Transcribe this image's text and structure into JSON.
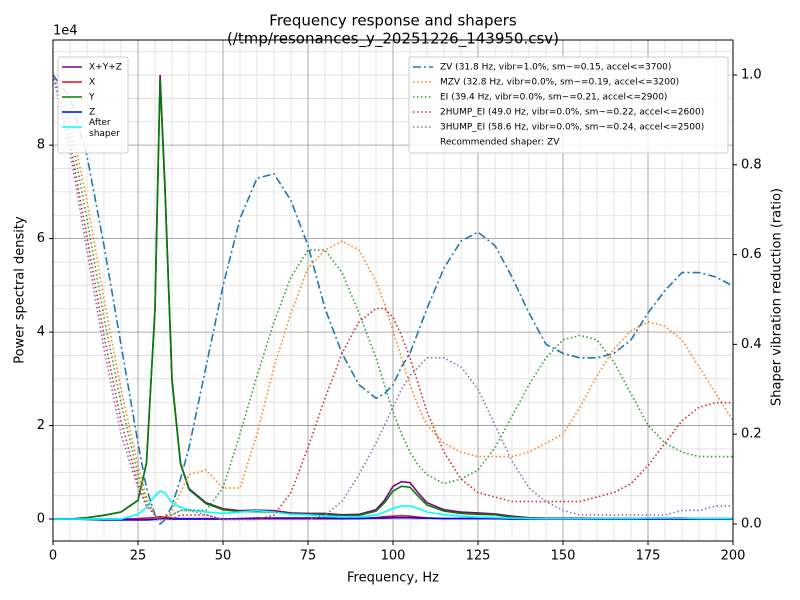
{
  "chart_data": {
    "type": "line",
    "title": "Frequency response and shapers",
    "subtitle": "(/tmp/resonances_y_20251226_143950.csv)",
    "x_label": "Frequency, Hz",
    "y_label": "Power spectral density",
    "y2_label": "Shaper vibration reduction (ratio)",
    "y_offset_label": "1e4",
    "xlim": [
      0,
      200
    ],
    "xticks": [
      0,
      25,
      50,
      75,
      100,
      125,
      150,
      175,
      200
    ],
    "ylim": [
      -4700,
      102500
    ],
    "yticks": [
      {
        "value": 0,
        "label": "0"
      },
      {
        "value": 20000,
        "label": "2"
      },
      {
        "value": 40000,
        "label": "4"
      },
      {
        "value": 60000,
        "label": "6"
      },
      {
        "value": 80000,
        "label": "8"
      }
    ],
    "y2lim": [
      -0.038,
      1.078
    ],
    "y2ticks": [
      {
        "value": 0,
        "label": "0.0"
      },
      0.2,
      0.4,
      0.6,
      0.8,
      {
        "value": 1,
        "label": "1.0"
      }
    ],
    "grid": true,
    "minor_grid": true,
    "legend": "upper left",
    "legend2": "upper right",
    "recommendation": "Recommended shaper: ZV",
    "x": [
      0,
      5,
      10,
      15,
      20,
      25,
      27.5,
      30,
      31.5,
      33,
      35,
      37.5,
      40,
      45,
      50,
      55,
      60,
      65,
      70,
      75,
      80,
      85,
      90,
      95,
      97.5,
      100,
      102.5,
      105,
      107.5,
      110,
      115,
      120,
      125,
      130,
      135,
      140,
      145,
      150,
      155,
      160,
      165,
      170,
      175,
      180,
      185,
      190,
      195,
      200
    ],
    "series": [
      {
        "name": "X+Y+Z",
        "color": "#800080",
        "linestyle": "solid",
        "axis": "y",
        "values": [
          0,
          0,
          300,
          800,
          1500,
          4000,
          12000,
          45000,
          95000,
          70000,
          30000,
          12000,
          6500,
          3500,
          2200,
          1800,
          1900,
          1800,
          1300,
          1200,
          1200,
          900,
          1000,
          2000,
          4000,
          7000,
          8000,
          7800,
          5500,
          3500,
          2000,
          1500,
          1300,
          1100,
          600,
          300,
          200,
          200,
          200,
          150,
          150,
          150,
          200,
          200,
          250,
          100,
          100,
          100
        ]
      },
      {
        "name": "X",
        "color": "#ff0000",
        "linestyle": "solid",
        "axis": "y",
        "values": [
          0,
          0,
          0,
          0,
          0,
          100,
          200,
          300,
          500,
          400,
          200,
          100,
          100,
          100,
          50,
          50,
          50,
          50,
          50,
          50,
          50,
          50,
          100,
          300,
          500,
          600,
          700,
          600,
          400,
          200,
          100,
          100,
          100,
          50,
          50,
          0,
          0,
          0,
          0,
          0,
          0,
          0,
          0,
          0,
          0,
          0,
          0,
          0
        ]
      },
      {
        "name": "Y",
        "color": "#008000",
        "linestyle": "solid",
        "axis": "y",
        "values": [
          0,
          0,
          300,
          800,
          1500,
          4000,
          12000,
          45000,
          94000,
          69000,
          29500,
          11800,
          6300,
          3300,
          2000,
          1600,
          1600,
          1500,
          1100,
          1000,
          1000,
          700,
          800,
          1700,
          3500,
          6000,
          7000,
          6800,
          4800,
          3000,
          1700,
          1200,
          1000,
          900,
          400,
          200,
          100,
          100,
          100,
          100,
          100,
          100,
          150,
          150,
          150,
          50,
          50,
          50
        ]
      },
      {
        "name": "Z",
        "color": "#0000ff",
        "linestyle": "solid",
        "axis": "y",
        "values": [
          0,
          0,
          -100,
          -200,
          -200,
          -200,
          -200,
          -100,
          100,
          100,
          0,
          0,
          0,
          0,
          0,
          100,
          200,
          200,
          200,
          200,
          200,
          100,
          100,
          200,
          200,
          300,
          300,
          300,
          200,
          200,
          100,
          100,
          100,
          100,
          0,
          0,
          50,
          50,
          50,
          0,
          0,
          0,
          50,
          50,
          50,
          0,
          0,
          0
        ]
      },
      {
        "name": "After\nshaper",
        "color": "#00ffff",
        "linestyle": "solid",
        "axis": "y",
        "values": [
          0,
          0,
          0,
          0,
          0,
          1000,
          2500,
          5000,
          6000,
          5500,
          3500,
          2500,
          2000,
          1500,
          1200,
          1500,
          1800,
          1500,
          1000,
          900,
          600,
          500,
          500,
          800,
          1500,
          2300,
          2800,
          2800,
          2200,
          1500,
          900,
          600,
          400,
          300,
          200,
          100,
          100,
          100,
          100,
          100,
          100,
          100,
          200,
          200,
          200,
          100,
          100,
          100
        ]
      },
      {
        "name": "ZV (31.8 Hz, vibr=1.0%, sm~=0.15, accel<=3700)",
        "color": "#1f77b4",
        "linestyle": "dashdot",
        "axis": "y2",
        "values": [
          1.0,
          0.95,
          0.82,
          0.62,
          0.4,
          0.18,
          0.08,
          0.02,
          0.0,
          0.01,
          0.04,
          0.1,
          0.17,
          0.35,
          0.53,
          0.68,
          0.77,
          0.78,
          0.72,
          0.62,
          0.48,
          0.38,
          0.31,
          0.28,
          0.29,
          0.31,
          0.35,
          0.38,
          0.43,
          0.48,
          0.57,
          0.63,
          0.65,
          0.62,
          0.55,
          0.47,
          0.4,
          0.38,
          0.37,
          0.37,
          0.38,
          0.41,
          0.47,
          0.52,
          0.56,
          0.56,
          0.55,
          0.53
        ]
      },
      {
        "name": "MZV (32.8 Hz, vibr=0.0%, sm~=0.19, accel<=3200)",
        "color": "#ff7f0e",
        "linestyle": "dotted",
        "axis": "y2",
        "values": [
          1.0,
          0.9,
          0.72,
          0.5,
          0.3,
          0.13,
          0.06,
          0.02,
          0.01,
          0.01,
          0.03,
          0.07,
          0.11,
          0.12,
          0.08,
          0.08,
          0.2,
          0.35,
          0.47,
          0.57,
          0.61,
          0.63,
          0.61,
          0.54,
          0.49,
          0.43,
          0.37,
          0.31,
          0.26,
          0.22,
          0.18,
          0.16,
          0.15,
          0.15,
          0.15,
          0.16,
          0.18,
          0.2,
          0.26,
          0.33,
          0.39,
          0.43,
          0.45,
          0.44,
          0.41,
          0.35,
          0.29,
          0.23
        ]
      },
      {
        "name": "EI (39.4 Hz, vibr=0.0%, sm~=0.21, accel<=2900)",
        "color": "#2ca02c",
        "linestyle": "dotted",
        "axis": "y2",
        "values": [
          1.0,
          0.88,
          0.68,
          0.46,
          0.27,
          0.11,
          0.05,
          0.02,
          0.01,
          0.01,
          0.02,
          0.03,
          0.03,
          0.03,
          0.08,
          0.2,
          0.33,
          0.45,
          0.55,
          0.61,
          0.61,
          0.56,
          0.47,
          0.37,
          0.31,
          0.25,
          0.2,
          0.16,
          0.13,
          0.11,
          0.09,
          0.1,
          0.12,
          0.17,
          0.24,
          0.31,
          0.37,
          0.41,
          0.42,
          0.41,
          0.36,
          0.29,
          0.22,
          0.18,
          0.16,
          0.15,
          0.15,
          0.15
        ]
      },
      {
        "name": "2HUMP_EI (49.0 Hz, vibr=0.0%, sm~=0.22, accel<=2600)",
        "color": "#d62728",
        "linestyle": "dotted",
        "axis": "y2",
        "values": [
          1.0,
          0.85,
          0.64,
          0.42,
          0.23,
          0.09,
          0.04,
          0.02,
          0.01,
          0.01,
          0.01,
          0.02,
          0.02,
          0.02,
          0.01,
          0.01,
          0.01,
          0.02,
          0.07,
          0.17,
          0.28,
          0.38,
          0.45,
          0.48,
          0.48,
          0.46,
          0.42,
          0.37,
          0.31,
          0.25,
          0.16,
          0.1,
          0.07,
          0.06,
          0.05,
          0.05,
          0.05,
          0.05,
          0.05,
          0.06,
          0.07,
          0.09,
          0.13,
          0.18,
          0.23,
          0.26,
          0.27,
          0.27
        ]
      },
      {
        "name": "3HUMP_EI (58.6 Hz, vibr=0.0%, sm~=0.24, accel<=2500)",
        "color": "#9467bd",
        "linestyle": "dotted",
        "axis": "y2",
        "values": [
          1.0,
          0.83,
          0.61,
          0.39,
          0.2,
          0.08,
          0.04,
          0.02,
          0.01,
          0.02,
          0.02,
          0.03,
          0.03,
          0.02,
          0.01,
          0.01,
          0.01,
          0.01,
          0.01,
          0.01,
          0.02,
          0.05,
          0.11,
          0.18,
          0.22,
          0.26,
          0.3,
          0.33,
          0.35,
          0.37,
          0.37,
          0.35,
          0.3,
          0.22,
          0.14,
          0.08,
          0.05,
          0.03,
          0.02,
          0.02,
          0.02,
          0.02,
          0.02,
          0.02,
          0.03,
          0.03,
          0.04,
          0.04
        ]
      }
    ]
  }
}
